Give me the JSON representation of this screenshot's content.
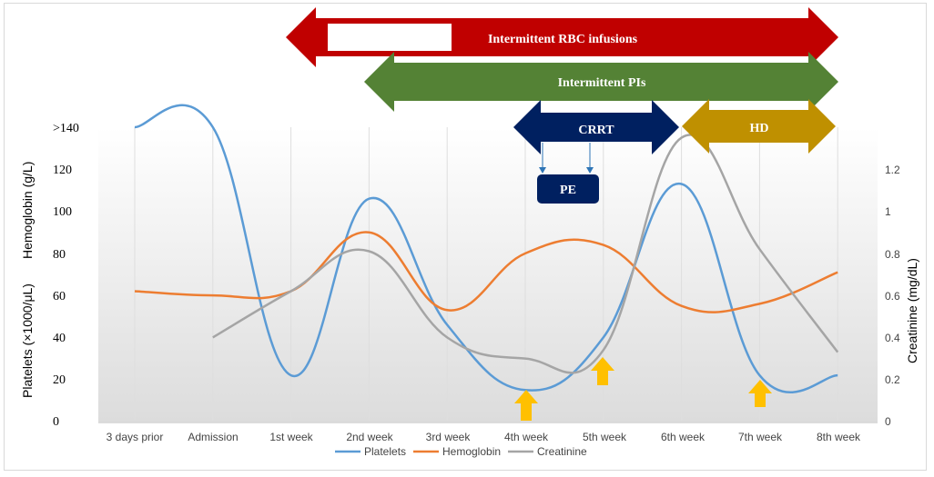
{
  "chart_data": {
    "type": "line",
    "categories": [
      "3 days prior",
      "Admission",
      "1st week",
      "2nd week",
      "3rd week",
      "4th week",
      "5th week",
      "6th week",
      "7th week",
      "8th week"
    ],
    "series": [
      {
        "name": "Platelets",
        "axis": "left",
        "color": "#5b9bd5",
        "values": [
          140,
          140,
          22,
          106,
          46,
          15,
          40,
          113,
          22,
          22
        ]
      },
      {
        "name": "Hemoglobin",
        "axis": "left",
        "color": "#ed7d31",
        "values": [
          62,
          60,
          62,
          90,
          53,
          80,
          84,
          55,
          56,
          71
        ]
      },
      {
        "name": "Creatinine",
        "axis": "right",
        "color": "#a5a5a5",
        "values": [
          null,
          0.4,
          0.62,
          0.81,
          0.4,
          0.3,
          0.34,
          1.35,
          0.82,
          0.33
        ]
      }
    ],
    "left_axis": {
      "ticks": [
        "0",
        "20",
        "40",
        "60",
        "80",
        "100",
        "120",
        ">140"
      ],
      "ylim": [
        0,
        140
      ]
    },
    "right_axis": {
      "ticks": [
        "0",
        "0.2",
        "0.4",
        "0.6",
        "0.8",
        "1",
        "1.2"
      ],
      "ylim": [
        0,
        1.4
      ],
      "label": "Creatinine (mg/dL)"
    },
    "ylabel_upper": "Hemoglobin (g/L)",
    "ylabel_lower": "Platelets (×1000/μL)",
    "legend_position": "bottom",
    "grid": "vertical",
    "bands": [
      {
        "label": "Intermittent RBC infusions",
        "color": "#c00000"
      },
      {
        "label": "Intermittent PIs",
        "color": "#548235"
      },
      {
        "label": "CRRT",
        "color": "#002060"
      },
      {
        "label": "HD",
        "color": "#bf9000"
      }
    ],
    "pe_label": "PE",
    "arrow_color": "#ffc000",
    "arrows_at": [
      "4th week",
      "5th week",
      "7th week"
    ]
  }
}
